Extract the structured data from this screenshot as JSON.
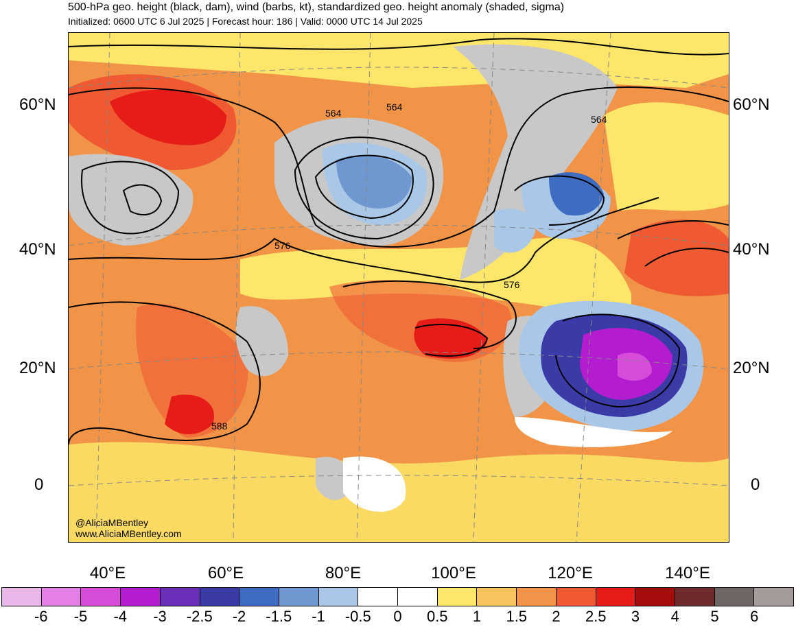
{
  "header": {
    "title": "500-hPa geo. height (black, dam), wind (barbs, kt), standardized geo. height anomaly (shaded, sigma)",
    "subtitle": "Initialized: 0600 UTC 6 Jul 2025 | Forecast hour: 186 | Valid: 0000 UTC 14 Jul 2025"
  },
  "axes": {
    "lat_labels": [
      "60°N",
      "40°N",
      "20°N",
      "0"
    ],
    "lon_labels": [
      "40°E",
      "60°E",
      "80°E",
      "100°E",
      "120°E",
      "140°E"
    ]
  },
  "contour_labels": [
    "564",
    "564",
    "564",
    "576",
    "576",
    "588"
  ],
  "credit": {
    "handle": "@AliciaMBentley",
    "site": "www.AliciaMBentley.com"
  },
  "colorbar": {
    "labels": [
      "-6",
      "-5",
      "-4",
      "-3",
      "-2.5",
      "-2",
      "-1.5",
      "-1",
      "-0.5",
      "0",
      "0.5",
      "1",
      "1.5",
      "2",
      "2.5",
      "3",
      "4",
      "5",
      "6"
    ],
    "colors": [
      "#eab8e8",
      "#e47fe6",
      "#d64cd8",
      "#b31ccf",
      "#6a2eb8",
      "#3b3ba8",
      "#3d6cc0",
      "#6f98d0",
      "#a9c8e8",
      "#ffffff",
      "#ffffff",
      "#fde66a",
      "#f6c45c",
      "#f29447",
      "#ef5a33",
      "#e51c18",
      "#a50d0d",
      "#6f2b2b",
      "#6e6766",
      "#a59b9a"
    ]
  }
}
